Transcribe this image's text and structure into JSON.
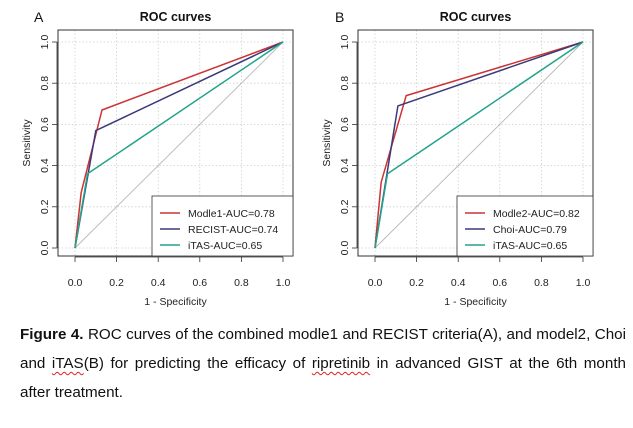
{
  "charts": [
    {
      "panel_label": "A",
      "type": "line",
      "title": "ROC curves",
      "xlabel": "1 - Specificity",
      "ylabel": "Sensitivity",
      "xlim": [
        0,
        1
      ],
      "ylim": [
        0,
        1
      ],
      "ticks": [
        "0.0",
        "0.2",
        "0.4",
        "0.6",
        "0.8",
        "1.0"
      ],
      "grid": true,
      "diagonal_reference": true,
      "legend_position": "bottom-right",
      "series": [
        {
          "name": "Modle1-AUC=0.78",
          "color": "#cc3333",
          "x": [
            0,
            0.03,
            0.13,
            1.0
          ],
          "y": [
            0,
            0.27,
            0.67,
            1.0
          ]
        },
        {
          "name": "RECIST-AUC=0.74",
          "color": "#3a3a7a",
          "x": [
            0,
            0.1,
            1.0
          ],
          "y": [
            0,
            0.57,
            1.0
          ]
        },
        {
          "name": "iTAS-AUC=0.65",
          "color": "#22a38a",
          "x": [
            0,
            0.06,
            1.0
          ],
          "y": [
            0,
            0.36,
            1.0
          ]
        }
      ]
    },
    {
      "panel_label": "B",
      "type": "line",
      "title": "ROC curves",
      "xlabel": "1 - Specificity",
      "ylabel": "Sensitivity",
      "xlim": [
        0,
        1
      ],
      "ylim": [
        0,
        1
      ],
      "ticks": [
        "0.0",
        "0.2",
        "0.4",
        "0.6",
        "0.8",
        "1.0"
      ],
      "grid": true,
      "diagonal_reference": true,
      "legend_position": "bottom-right",
      "series": [
        {
          "name": "Modle2-AUC=0.82",
          "color": "#cc3333",
          "x": [
            0,
            0.03,
            0.15,
            1.0
          ],
          "y": [
            0,
            0.32,
            0.74,
            1.0
          ]
        },
        {
          "name": "Choi-AUC=0.79",
          "color": "#3a3a7a",
          "x": [
            0,
            0.11,
            1.0
          ],
          "y": [
            0,
            0.69,
            1.0
          ]
        },
        {
          "name": "iTAS-AUC=0.65",
          "color": "#22a38a",
          "x": [
            0,
            0.06,
            1.0
          ],
          "y": [
            0,
            0.36,
            1.0
          ]
        }
      ]
    }
  ],
  "caption": {
    "label": "Figure 4.",
    "text_1": " ROC curves of the combined modle1 and RECIST criteria(A), and model2, Choi and ",
    "itas": "iTAS",
    "text_2": "(B) for predicting the efficacy of ",
    "drug": "ripretinib",
    "text_3": " in advanced GIST at the 6th month after treatment."
  }
}
